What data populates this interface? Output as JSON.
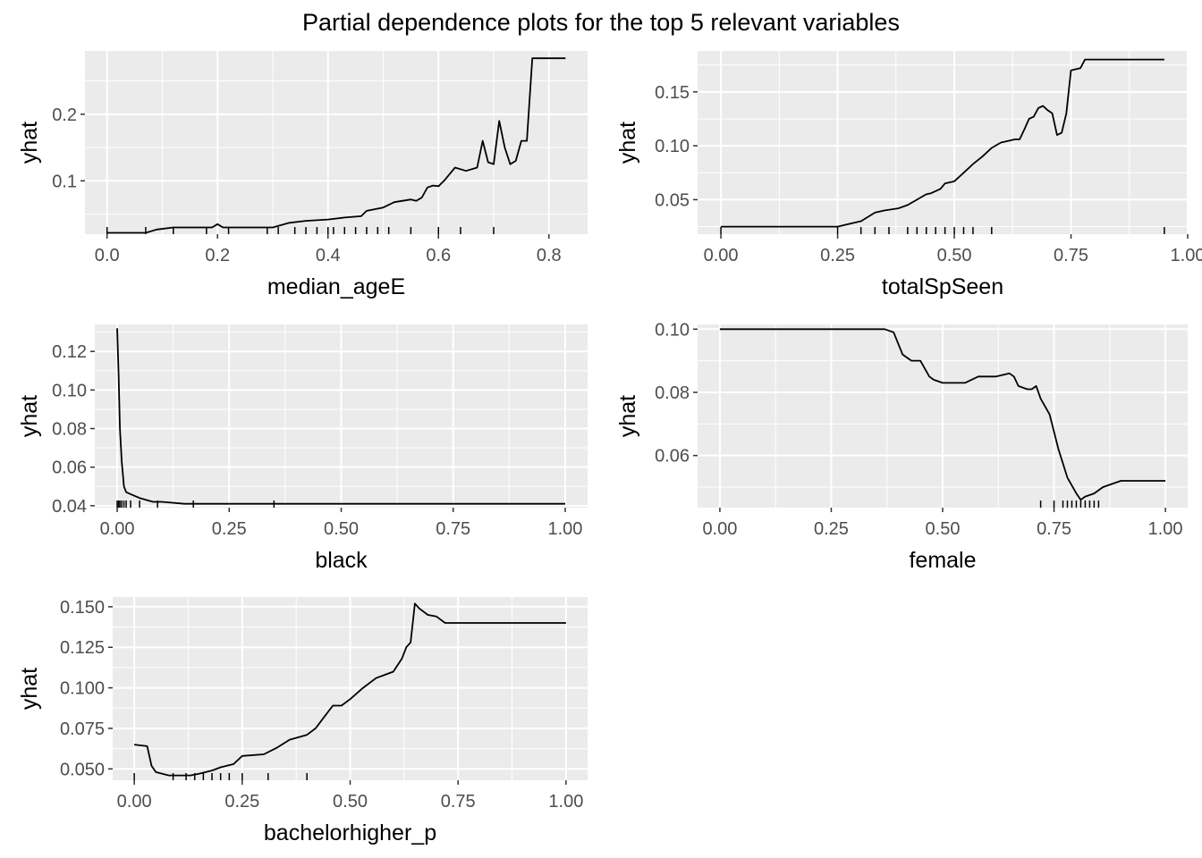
{
  "title": "Partial dependence plots for the top 5 relevant variables",
  "colors": {
    "panel_bg": "#ebebeb",
    "grid": "#ffffff",
    "line": "#000000",
    "tick_text": "#4d4d4d"
  },
  "chart_data": [
    {
      "type": "line",
      "xlabel": "median_ageE",
      "ylabel": "yhat",
      "xlim": [
        -0.04,
        0.87
      ],
      "ylim": [
        0.02,
        0.295
      ],
      "xticks": [
        0.0,
        0.2,
        0.4,
        0.6,
        0.8
      ],
      "xtick_labels": [
        "0.0",
        "0.2",
        "0.4",
        "0.6",
        "0.8"
      ],
      "yticks": [
        0.1,
        0.2
      ],
      "ytick_labels": [
        "0.1",
        "0.2"
      ],
      "grid": true,
      "x": [
        0.0,
        0.07,
        0.09,
        0.12,
        0.19,
        0.2,
        0.21,
        0.25,
        0.3,
        0.33,
        0.36,
        0.4,
        0.43,
        0.46,
        0.47,
        0.5,
        0.52,
        0.55,
        0.56,
        0.57,
        0.58,
        0.59,
        0.6,
        0.61,
        0.62,
        0.63,
        0.65,
        0.67,
        0.68,
        0.69,
        0.7,
        0.71,
        0.72,
        0.73,
        0.74,
        0.75,
        0.76,
        0.77,
        0.83
      ],
      "y": [
        0.022,
        0.022,
        0.027,
        0.03,
        0.03,
        0.035,
        0.03,
        0.03,
        0.03,
        0.037,
        0.04,
        0.042,
        0.045,
        0.047,
        0.055,
        0.06,
        0.068,
        0.072,
        0.07,
        0.075,
        0.09,
        0.093,
        0.092,
        0.1,
        0.11,
        0.12,
        0.115,
        0.12,
        0.16,
        0.128,
        0.125,
        0.19,
        0.15,
        0.125,
        0.13,
        0.16,
        0.16,
        0.284,
        0.284
      ],
      "rug": [
        0.0,
        0.07,
        0.12,
        0.18,
        0.22,
        0.29,
        0.31,
        0.34,
        0.36,
        0.38,
        0.4,
        0.41,
        0.43,
        0.45,
        0.47,
        0.49,
        0.51,
        0.55,
        0.6,
        0.64,
        0.7
      ]
    },
    {
      "type": "line",
      "xlabel": "totalSpSeen",
      "ylabel": "yhat",
      "xlim": [
        -0.05,
        1.0
      ],
      "ylim": [
        0.018,
        0.188
      ],
      "xticks": [
        0.0,
        0.25,
        0.5,
        0.75,
        1.0
      ],
      "xtick_labels": [
        "0.00",
        "0.25",
        "0.50",
        "0.75",
        "1.00"
      ],
      "yticks": [
        0.05,
        0.1,
        0.15
      ],
      "ytick_labels": [
        "0.05",
        "0.10",
        "0.15"
      ],
      "grid": true,
      "x": [
        0.0,
        0.1,
        0.25,
        0.28,
        0.3,
        0.33,
        0.35,
        0.38,
        0.4,
        0.42,
        0.44,
        0.45,
        0.47,
        0.48,
        0.5,
        0.52,
        0.54,
        0.56,
        0.58,
        0.6,
        0.62,
        0.63,
        0.64,
        0.65,
        0.66,
        0.67,
        0.68,
        0.69,
        0.7,
        0.71,
        0.72,
        0.73,
        0.74,
        0.75,
        0.77,
        0.78,
        0.85,
        0.95
      ],
      "y": [
        0.025,
        0.025,
        0.025,
        0.028,
        0.03,
        0.038,
        0.04,
        0.042,
        0.045,
        0.05,
        0.055,
        0.056,
        0.06,
        0.065,
        0.067,
        0.075,
        0.083,
        0.09,
        0.098,
        0.103,
        0.105,
        0.106,
        0.106,
        0.115,
        0.125,
        0.127,
        0.135,
        0.137,
        0.133,
        0.13,
        0.11,
        0.112,
        0.13,
        0.17,
        0.172,
        0.18,
        0.18,
        0.18
      ],
      "rug": [
        0.0,
        0.25,
        0.3,
        0.33,
        0.36,
        0.4,
        0.42,
        0.44,
        0.46,
        0.48,
        0.5,
        0.52,
        0.54,
        0.58,
        0.95
      ]
    },
    {
      "type": "line",
      "xlabel": "black",
      "ylabel": "yhat",
      "xlim": [
        -0.05,
        1.05
      ],
      "ylim": [
        0.039,
        0.134
      ],
      "xticks": [
        0.0,
        0.25,
        0.5,
        0.75,
        1.0
      ],
      "xtick_labels": [
        "0.00",
        "0.25",
        "0.50",
        "0.75",
        "1.00"
      ],
      "yticks": [
        0.04,
        0.06,
        0.08,
        0.1,
        0.12
      ],
      "ytick_labels": [
        "0.04",
        "0.06",
        "0.08",
        "0.10",
        "0.12"
      ],
      "grid": true,
      "x": [
        0.0,
        0.003,
        0.006,
        0.01,
        0.015,
        0.02,
        0.03,
        0.05,
        0.08,
        0.1,
        0.15,
        0.2,
        0.5,
        1.0
      ],
      "y": [
        0.132,
        0.11,
        0.08,
        0.063,
        0.05,
        0.047,
        0.046,
        0.044,
        0.042,
        0.042,
        0.041,
        0.041,
        0.041,
        0.041
      ],
      "rug": [
        0.0,
        0.003,
        0.006,
        0.01,
        0.015,
        0.02,
        0.03,
        0.05,
        0.09,
        0.17,
        0.35
      ]
    },
    {
      "type": "line",
      "xlabel": "female",
      "ylabel": "yhat",
      "xlim": [
        -0.05,
        1.05
      ],
      "ylim": [
        0.0435,
        0.1015
      ],
      "xticks": [
        0.0,
        0.25,
        0.5,
        0.75,
        1.0
      ],
      "xtick_labels": [
        "0.00",
        "0.25",
        "0.50",
        "0.75",
        "1.00"
      ],
      "yticks": [
        0.06,
        0.08,
        0.1
      ],
      "ytick_labels": [
        "0.06",
        "0.08",
        "0.10"
      ],
      "grid": true,
      "x": [
        0.0,
        0.2,
        0.37,
        0.39,
        0.41,
        0.43,
        0.45,
        0.47,
        0.48,
        0.5,
        0.55,
        0.58,
        0.6,
        0.62,
        0.65,
        0.66,
        0.67,
        0.69,
        0.7,
        0.71,
        0.72,
        0.74,
        0.76,
        0.78,
        0.8,
        0.81,
        0.82,
        0.84,
        0.86,
        0.9,
        1.0
      ],
      "y": [
        0.1,
        0.1,
        0.1,
        0.099,
        0.092,
        0.09,
        0.09,
        0.085,
        0.084,
        0.083,
        0.083,
        0.085,
        0.085,
        0.085,
        0.086,
        0.085,
        0.082,
        0.081,
        0.081,
        0.082,
        0.078,
        0.073,
        0.062,
        0.053,
        0.048,
        0.046,
        0.047,
        0.048,
        0.05,
        0.052,
        0.052
      ],
      "rug": [
        0.72,
        0.75,
        0.77,
        0.78,
        0.79,
        0.8,
        0.81,
        0.82,
        0.83,
        0.84,
        0.85
      ]
    },
    {
      "type": "line",
      "xlabel": "bachelorhigher_p",
      "ylabel": "yhat",
      "xlim": [
        -0.05,
        1.05
      ],
      "ylim": [
        0.043,
        0.156
      ],
      "xticks": [
        0.0,
        0.25,
        0.5,
        0.75,
        1.0
      ],
      "xtick_labels": [
        "0.00",
        "0.25",
        "0.50",
        "0.75",
        "1.00"
      ],
      "yticks": [
        0.05,
        0.075,
        0.1,
        0.125,
        0.15
      ],
      "ytick_labels": [
        "0.050",
        "0.075",
        "0.100",
        "0.125",
        "0.150"
      ],
      "grid": true,
      "x": [
        0.0,
        0.03,
        0.04,
        0.05,
        0.08,
        0.1,
        0.13,
        0.15,
        0.18,
        0.2,
        0.23,
        0.25,
        0.3,
        0.33,
        0.36,
        0.4,
        0.42,
        0.44,
        0.46,
        0.48,
        0.5,
        0.53,
        0.56,
        0.58,
        0.6,
        0.62,
        0.63,
        0.64,
        0.65,
        0.66,
        0.68,
        0.7,
        0.72,
        0.8,
        1.0
      ],
      "y": [
        0.065,
        0.064,
        0.052,
        0.048,
        0.046,
        0.046,
        0.046,
        0.047,
        0.049,
        0.051,
        0.053,
        0.058,
        0.059,
        0.063,
        0.068,
        0.071,
        0.075,
        0.082,
        0.089,
        0.089,
        0.093,
        0.1,
        0.106,
        0.108,
        0.11,
        0.118,
        0.125,
        0.128,
        0.152,
        0.149,
        0.145,
        0.144,
        0.14,
        0.14,
        0.14
      ],
      "rug": [
        0.0,
        0.09,
        0.12,
        0.14,
        0.16,
        0.18,
        0.2,
        0.22,
        0.25,
        0.31,
        0.4
      ]
    }
  ]
}
